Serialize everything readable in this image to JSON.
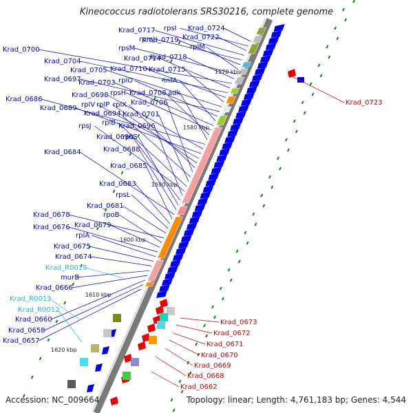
{
  "title": "Kineococcus radiotolerans SRS30216, complete genome",
  "accession_text": "Accession: NC_009664",
  "summary_text": "Topology: linear; Length: 4,761,183 bp; Genes: 4,544",
  "colors": {
    "forward_label": "#0000cc",
    "reverse_label": "#cc0000",
    "rna_label": "#22bbdd",
    "forward_gene": "#0000ee",
    "reverse_gene": "#ee0000",
    "backbone": "#888888",
    "tick": "#1a7a1a"
  },
  "ticks": [
    "1570 kbp",
    "1580 kbp",
    "1590 kbp",
    "1600 kbp",
    "1610 kbp",
    "1620 kbp"
  ],
  "labels_forward": [
    "Krad_0724",
    "rpsI",
    "Krad_0722",
    "Krad_0717",
    "rpmJ",
    "Krad_0719",
    "rplM",
    "rpsM",
    "Krad_0718",
    "Krad_0700",
    "Krad_0714",
    "Krad_0704",
    "Krad_0710",
    "Krad_0715",
    "Krad_0705",
    "Krad_0697",
    "rplO",
    "infA",
    "Krad_0703",
    "rpsH",
    "Krad_0708",
    "adk",
    "Krad_0686",
    "Krad_0698",
    "Krad_0689",
    "rplV",
    "rplP",
    "rplX",
    "Krad_0706",
    "Krad_0694",
    "Krad_0701",
    "rplB",
    "rpsJ",
    "Krad_0696",
    "Krad_0690",
    "rpsS",
    "Krad_0688",
    "Krad_0684",
    "Krad_0685",
    "Krad_0683",
    "rpsL",
    "Krad_0681",
    "Krad_0678",
    "rpoB",
    "Krad_0679",
    "Krad_0676",
    "rplA",
    "Krad_0675",
    "Krad_0674",
    "murB",
    "Krad_0666",
    "Krad_0660",
    "Krad_0658",
    "Krad_0657"
  ],
  "labels_rna": [
    "Krad_R0015",
    "Krad_R0013",
    "Krad_R0012"
  ],
  "labels_reverse": [
    "Krad_0723",
    "Krad_0673",
    "Krad_0672",
    "Krad_0671",
    "Krad_0670",
    "Krad_0669",
    "Krad_0668",
    "Krad_0662"
  ]
}
